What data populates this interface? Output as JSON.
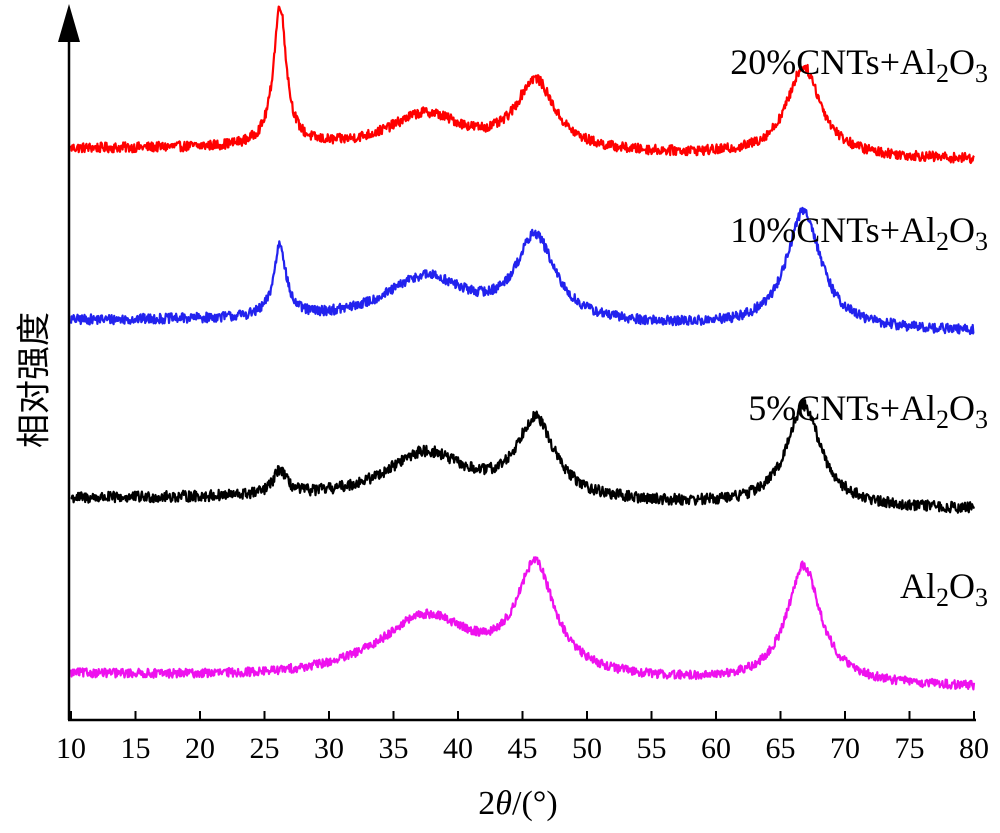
{
  "chart_data": {
    "type": "line",
    "xlabel_prefix": "2",
    "xlabel_var": "θ",
    "xlabel_suffix": "/(°)",
    "ylabel": "相对强度",
    "xlim": [
      10,
      80
    ],
    "xticks": [
      10,
      15,
      20,
      25,
      30,
      35,
      40,
      45,
      50,
      55,
      60,
      65,
      70,
      75,
      80
    ],
    "grid": false,
    "legend": "inline labels above each curve",
    "series": [
      {
        "name_parts": [
          "20%CNTs+Al",
          "2",
          "O",
          "3"
        ],
        "color": "#ff0000",
        "baseline": [
          [
            10,
            0.1
          ],
          [
            25,
            0.1
          ],
          [
            45,
            0.06
          ],
          [
            80,
            0.0
          ]
        ],
        "peaks": [
          {
            "center": 26.2,
            "height": 1.25,
            "width": 0.6
          },
          {
            "center": 37.5,
            "height": 0.32,
            "width": 3.5
          },
          {
            "center": 46.0,
            "height": 0.62,
            "width": 1.8
          },
          {
            "center": 66.8,
            "height": 0.8,
            "width": 1.6
          }
        ],
        "noise": 0.045
      },
      {
        "name_parts": [
          "10%CNTs+Al",
          "2",
          "O",
          "3"
        ],
        "color": "#2222ee",
        "baseline": [
          [
            10,
            0.1
          ],
          [
            25,
            0.1
          ],
          [
            45,
            0.06
          ],
          [
            80,
            0.0
          ]
        ],
        "peaks": [
          {
            "center": 26.2,
            "height": 0.65,
            "width": 0.55
          },
          {
            "center": 37.5,
            "height": 0.4,
            "width": 3.8
          },
          {
            "center": 46.0,
            "height": 0.75,
            "width": 1.8
          },
          {
            "center": 66.8,
            "height": 1.05,
            "width": 1.6
          }
        ],
        "noise": 0.045
      },
      {
        "name_parts": [
          "5%CNTs+Al",
          "2",
          "O",
          "3"
        ],
        "color": "#000000",
        "baseline": [
          [
            10,
            0.1
          ],
          [
            25,
            0.1
          ],
          [
            45,
            0.06
          ],
          [
            80,
            0.0
          ]
        ],
        "peaks": [
          {
            "center": 26.2,
            "height": 0.22,
            "width": 0.6
          },
          {
            "center": 37.5,
            "height": 0.42,
            "width": 3.8
          },
          {
            "center": 46.0,
            "height": 0.7,
            "width": 1.8
          },
          {
            "center": 66.8,
            "height": 0.9,
            "width": 1.6
          }
        ],
        "noise": 0.05
      },
      {
        "name_parts": [
          "Al",
          "2",
          "O",
          "3"
        ],
        "color": "#ee11ee",
        "baseline": [
          [
            10,
            0.12
          ],
          [
            25,
            0.08
          ],
          [
            45,
            0.06
          ],
          [
            80,
            0.0
          ]
        ],
        "peaks": [
          {
            "center": 37.5,
            "height": 0.55,
            "width": 4.5
          },
          {
            "center": 46.0,
            "height": 0.95,
            "width": 1.8
          },
          {
            "center": 66.8,
            "height": 1.05,
            "width": 1.6
          }
        ],
        "noise": 0.04
      }
    ]
  }
}
